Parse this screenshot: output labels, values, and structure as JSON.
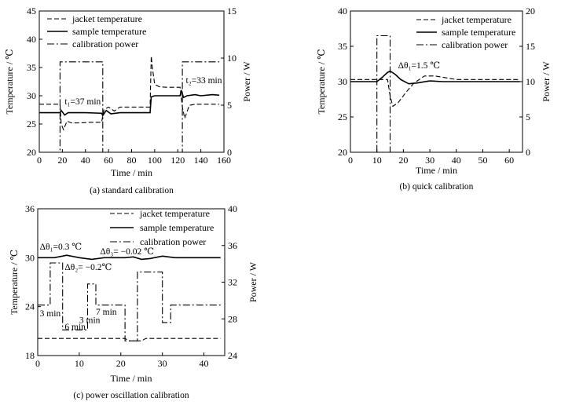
{
  "chart_data": [
    {
      "id": "a",
      "type": "line",
      "caption": "(a) standard calibration",
      "xlabel": "Time / min",
      "ylabel": "Temperature / ℃",
      "y2label": "Power / W",
      "xlim": [
        0,
        160
      ],
      "ylim": [
        20,
        45
      ],
      "y2lim": [
        0,
        15
      ],
      "xticks": [
        "0",
        "20",
        "40",
        "60",
        "80",
        "100",
        "120",
        "140",
        "160"
      ],
      "yticks": [
        "20",
        "25",
        "30",
        "35",
        "40",
        "45"
      ],
      "y2ticks": [
        "0",
        "5",
        "10",
        "15"
      ],
      "legend": [
        "jacket temperature",
        "sample temperature",
        "calibration power"
      ],
      "series": [
        {
          "name": "jacket temperature",
          "style": "dashed",
          "axis": "left",
          "x": [
            0,
            18,
            19,
            21,
            24,
            28,
            35,
            45,
            54,
            56,
            60,
            65,
            70,
            80,
            96,
            97,
            98,
            100,
            104,
            110,
            122,
            124,
            126,
            130,
            135,
            140,
            150,
            156
          ],
          "y": [
            28.5,
            28.5,
            25,
            24,
            25.5,
            25.2,
            25.2,
            25.3,
            25.3,
            27.5,
            28,
            27.3,
            28,
            28,
            28,
            37,
            35,
            32,
            31.6,
            31.5,
            31.5,
            28,
            26,
            28.3,
            28.5,
            28.5,
            28.5,
            28.5
          ]
        },
        {
          "name": "sample temperature",
          "style": "solid",
          "axis": "left",
          "x": [
            0,
            18,
            19,
            22,
            25,
            30,
            40,
            54,
            55,
            58,
            62,
            70,
            80,
            96,
            97,
            100,
            110,
            122,
            123,
            125,
            128,
            135,
            140,
            150,
            156
          ],
          "y": [
            27,
            27,
            27.4,
            26.6,
            27,
            27,
            27,
            26.9,
            26.5,
            27.4,
            26.8,
            27,
            27,
            27,
            29.8,
            30,
            30,
            30,
            31,
            29.7,
            30,
            30.2,
            30,
            30.2,
            30.1
          ]
        },
        {
          "name": "calibration power",
          "style": "dashdot",
          "axis": "right",
          "x": [
            0,
            18,
            18,
            55,
            55,
            96,
            96,
            124,
            124,
            156
          ],
          "y": [
            0,
            0,
            9.6,
            9.6,
            0,
            0,
            0,
            0,
            9.6,
            9.6
          ]
        }
      ],
      "annotations": [
        {
          "text": "t₁=37 min",
          "x": 22,
          "y": 28.5
        },
        {
          "text": "t₂=33 min",
          "x": 127,
          "y": 32.2
        }
      ]
    },
    {
      "id": "b",
      "type": "line",
      "caption": "(b) quick calibration",
      "xlabel": "Time / min",
      "ylabel": "Temperature / ℃",
      "y2label": "Power / W",
      "xlim": [
        0,
        65
      ],
      "ylim": [
        20,
        40
      ],
      "y2lim": [
        0,
        20
      ],
      "xticks": [
        "0",
        "10",
        "20",
        "30",
        "40",
        "50",
        "60"
      ],
      "yticks": [
        "20",
        "25",
        "30",
        "35",
        "40"
      ],
      "y2ticks": [
        "0",
        "5",
        "10",
        "15",
        "20"
      ],
      "legend": [
        "jacket temperature",
        "sample temperature",
        "calibration power"
      ],
      "series": [
        {
          "name": "jacket temperature",
          "style": "dashed",
          "axis": "left",
          "x": [
            0,
            14,
            15,
            16,
            18,
            21,
            24,
            28,
            32,
            40,
            50,
            64
          ],
          "y": [
            30.3,
            30.3,
            28,
            26.5,
            27,
            28.5,
            29.8,
            30.8,
            30.8,
            30.3,
            30.3,
            30.3
          ]
        },
        {
          "name": "sample temperature",
          "style": "solid",
          "axis": "left",
          "x": [
            0,
            10,
            12,
            14,
            15,
            17,
            19,
            22,
            25,
            30,
            35,
            40,
            50,
            64
          ],
          "y": [
            30,
            30,
            30.6,
            31.3,
            31.5,
            31,
            30.3,
            29.7,
            29.8,
            30.1,
            30,
            30,
            30,
            30
          ]
        },
        {
          "name": "calibration power",
          "style": "dashdot",
          "axis": "right",
          "x": [
            0,
            10,
            10,
            15,
            15,
            64
          ],
          "y": [
            0,
            0,
            16.5,
            16.5,
            0,
            0
          ]
        }
      ],
      "annotations": [
        {
          "text": "Δθ₁=1.5 ℃",
          "x": 18,
          "y": 31.9
        }
      ]
    },
    {
      "id": "c",
      "type": "line",
      "caption": "(c) power oscillation calibration",
      "xlabel": "Time / min",
      "ylabel": "Temperature / ℃",
      "y2label": "Power / W",
      "xlim": [
        0,
        45
      ],
      "ylim": [
        18,
        36
      ],
      "y2lim": [
        24,
        40
      ],
      "xticks": [
        "0",
        "10",
        "20",
        "30",
        "40"
      ],
      "yticks": [
        "18",
        "24",
        "30",
        "36"
      ],
      "y2ticks": [
        "24",
        "28",
        "32",
        "36",
        "40"
      ],
      "legend": [
        "jacket temperature",
        "sample temperature",
        "calibration power"
      ],
      "series": [
        {
          "name": "jacket temperature",
          "style": "dashed",
          "axis": "left",
          "x": [
            0,
            21,
            22,
            25,
            26,
            44
          ],
          "y": [
            20.1,
            20.1,
            19.8,
            19.8,
            20.1,
            20.1
          ]
        },
        {
          "name": "sample temperature",
          "style": "solid",
          "axis": "left",
          "x": [
            0,
            4,
            7,
            10,
            13,
            16,
            19,
            21,
            23,
            25,
            27,
            30,
            33,
            36,
            40,
            44
          ],
          "y": [
            30,
            30,
            30.3,
            30,
            29.8,
            30,
            30,
            30,
            30.1,
            29.8,
            29.9,
            30.2,
            30,
            30,
            30,
            30
          ]
        },
        {
          "name": "calibration power",
          "style": "dashdot",
          "axis": "right",
          "x": [
            0,
            3,
            3,
            6,
            6,
            12,
            12,
            14,
            14,
            21,
            21,
            24,
            24,
            30,
            30,
            32,
            32,
            44
          ],
          "y": [
            29.5,
            29.5,
            34.1,
            34.1,
            26.8,
            26.8,
            31.8,
            31.8,
            29.5,
            29.5,
            25.6,
            25.6,
            33.1,
            33.1,
            27.6,
            27.6,
            29.5,
            29.5
          ]
        }
      ],
      "annotations": [
        {
          "text": "Δθ₁=0.3 ℃",
          "x": 0.5,
          "y": 31
        },
        {
          "text": "Δθ₂= −0.2℃",
          "x": 6.5,
          "y": 28.5
        },
        {
          "text": "Δθ₃= −0.02 ℃",
          "x": 15,
          "y": 30.4
        },
        {
          "text": "3 min",
          "x": 0.5,
          "y": 22.8
        },
        {
          "text": "6 min",
          "x": 6.5,
          "y": 21.2
        },
        {
          "text": "7 min",
          "x": 14,
          "y": 23
        },
        {
          "text": "3 min",
          "x": 10,
          "y": 22
        }
      ]
    }
  ]
}
